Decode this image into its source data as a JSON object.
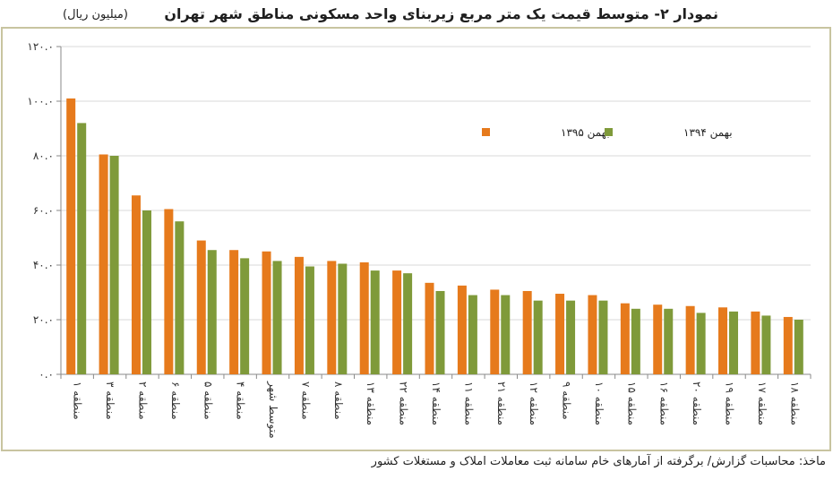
{
  "header": {
    "title": "نمودار ۲- متوسط قیمت یک متر مربع زیربنای واحد مسکونی مناطق شهر تهران",
    "unit": "(میلیون ریال)"
  },
  "footer": {
    "source": "ماخذ: محاسبات گزارش/ برگرفته از آمارهای خام سامانه ثبت معاملات املاک و مستغلات کشور"
  },
  "chart_data": {
    "type": "bar",
    "categories": [
      "منطقه ۱",
      "منطقه ۳",
      "منطقه ۲",
      "منطقه ۶",
      "منطقه ۵",
      "منطقه ۴",
      "متوسط شهر",
      "منطقه ۷",
      "منطقه ۸",
      "منطقه ۱۳",
      "منطقه ۲۲",
      "منطقه ۱۴",
      "منطقه ۱۱",
      "منطقه ۲۱",
      "منطقه ۱۲",
      "منطقه ۹",
      "منطقه ۱۰",
      "منطقه ۱۵",
      "منطقه ۱۶",
      "منطقه ۲۰",
      "منطقه ۱۹",
      "منطقه ۱۷",
      "منطقه ۱۸"
    ],
    "series": [
      {
        "name": "بهمن ۱۳۹۵",
        "color": "#e67a1c",
        "values": [
          101,
          80.5,
          65.5,
          60.5,
          49,
          45.5,
          45,
          43,
          41.5,
          41,
          38,
          33.5,
          32.5,
          31,
          30.5,
          29.5,
          29,
          26,
          25.5,
          25,
          24.5,
          23,
          21
        ]
      },
      {
        "name": "بهمن ۱۳۹۴",
        "color": "#7f9a3a",
        "values": [
          92,
          80,
          60,
          56,
          45.5,
          42.5,
          41.5,
          39.5,
          40.5,
          38,
          37,
          30.5,
          29,
          29,
          27,
          27,
          27,
          24,
          24,
          22.5,
          23,
          21.5,
          20
        ]
      }
    ],
    "ylim": [
      0,
      120
    ],
    "yticks": [
      "۰.۰",
      "۲۰.۰",
      "۴۰.۰",
      "۶۰.۰",
      "۸۰.۰",
      "۱۰۰.۰",
      "۱۲۰.۰"
    ],
    "ytick_values": [
      0,
      20,
      40,
      60,
      80,
      100,
      120
    ],
    "grid": true,
    "legend_position": "top-right",
    "plot_background": "#ffffff",
    "frame_color": "#c8c4a0"
  }
}
